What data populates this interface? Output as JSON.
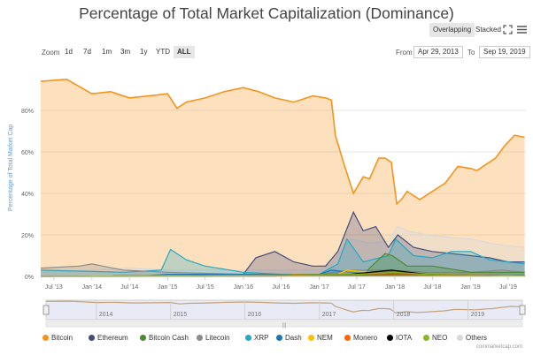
{
  "header": {
    "title": "Percentage of Total Market Capitalization (Dominance)",
    "mode_overlapping": "Overlapping",
    "mode_stacked": "Stacked",
    "fullscreen_icon": "expand-icon",
    "menu_icon": "hamburger-icon"
  },
  "zoom": {
    "label": "Zoom",
    "buttons": [
      "1d",
      "7d",
      "1m",
      "3m",
      "1y",
      "YTD",
      "ALL"
    ],
    "active": "ALL",
    "from_label": "From",
    "from_value": "Apr 29, 2013",
    "to_label": "To",
    "to_value": "Sep 19, 2019"
  },
  "credit": "coinmarketcap.com",
  "navigator": {
    "year_labels": [
      "2014",
      "2015",
      "2016",
      "2017",
      "2018",
      "2019"
    ],
    "handle_icon": "grip-handle-icon"
  },
  "colors": {
    "Bitcoin": "#f7931a",
    "Ethereum": "#434c7e",
    "Bitcoin Cash": "#478c2f",
    "Litecoin": "#8c8c8c",
    "XRP": "#23a9c1",
    "Dash": "#1c75bc",
    "NEM": "#ffc000",
    "Monero": "#ff6600",
    "IOTA": "#000000",
    "NEO": "#8ab624",
    "Others": "#d9d9d9"
  },
  "chart_data": {
    "type": "area",
    "title": "Percentage of Total Market Capitalization (Dominance)",
    "xlabel": "",
    "ylabel": "Percentage of Total Market Cap",
    "ylim": [
      0,
      100
    ],
    "yticks": [
      "0%",
      "20%",
      "40%",
      "60%",
      "80%"
    ],
    "xticks": [
      "Jul '13",
      "Jan '14",
      "Jul '14",
      "Jan '15",
      "Jul '15",
      "Jan '16",
      "Jul '16",
      "Jan '17",
      "Jul '17",
      "Jan '18",
      "Jul '18",
      "Jan '19",
      "Jul '19"
    ],
    "legend_position": "bottom",
    "grid": true,
    "series": [
      {
        "name": "Bitcoin",
        "x": [
          "2013-04-29",
          "2013-09-01",
          "2014-01-01",
          "2014-04-01",
          "2014-07-01",
          "2014-10-01",
          "2015-01-01",
          "2015-02-15",
          "2015-04-01",
          "2015-07-01",
          "2015-10-01",
          "2016-01-01",
          "2016-03-15",
          "2016-06-01",
          "2016-09-01",
          "2016-12-01",
          "2017-02-01",
          "2017-03-01",
          "2017-03-20",
          "2017-05-01",
          "2017-06-15",
          "2017-08-01",
          "2017-09-01",
          "2017-10-15",
          "2017-11-15",
          "2017-12-15",
          "2018-01-10",
          "2018-02-01",
          "2018-03-01",
          "2018-05-01",
          "2018-07-01",
          "2018-09-01",
          "2018-11-01",
          "2019-01-01",
          "2019-02-01",
          "2019-04-01",
          "2019-05-01",
          "2019-06-15",
          "2019-08-01",
          "2019-09-19"
        ],
        "values": [
          94,
          95,
          88,
          89,
          86,
          87,
          88,
          81,
          84,
          86,
          89,
          91,
          89,
          86,
          84,
          87,
          86,
          85,
          68,
          54,
          40,
          48,
          47,
          57,
          57,
          55,
          35,
          37,
          41,
          37,
          41,
          45,
          53,
          52,
          51,
          55,
          57,
          63,
          68,
          67
        ]
      },
      {
        "name": "Ethereum",
        "x": [
          "2013-04-29",
          "2015-08-01",
          "2016-01-01",
          "2016-03-01",
          "2016-06-01",
          "2016-09-01",
          "2016-12-01",
          "2017-02-01",
          "2017-04-01",
          "2017-06-15",
          "2017-08-01",
          "2017-10-01",
          "2017-12-01",
          "2018-01-15",
          "2018-04-01",
          "2018-07-01",
          "2018-10-01",
          "2019-01-01",
          "2019-04-01",
          "2019-07-01",
          "2019-09-19"
        ],
        "values": [
          0,
          0,
          1,
          9,
          12,
          7,
          5,
          5,
          12,
          31,
          22,
          24,
          14,
          20,
          14,
          12,
          11,
          10,
          9,
          7,
          7
        ]
      },
      {
        "name": "XRP",
        "x": [
          "2013-04-29",
          "2014-06-01",
          "2014-12-01",
          "2015-01-15",
          "2015-04-01",
          "2015-07-01",
          "2016-01-01",
          "2016-07-01",
          "2017-01-01",
          "2017-04-01",
          "2017-05-15",
          "2017-08-01",
          "2017-12-01",
          "2018-01-05",
          "2018-04-01",
          "2018-07-01",
          "2018-10-01",
          "2019-01-01",
          "2019-04-01",
          "2019-09-19"
        ],
        "values": [
          3,
          2,
          3,
          13,
          8,
          5,
          2,
          1,
          1,
          6,
          18,
          7,
          10,
          18,
          10,
          9,
          12,
          12,
          8,
          6
        ]
      },
      {
        "name": "Litecoin",
        "x": [
          "2013-04-29",
          "2013-11-01",
          "2014-01-01",
          "2014-06-01",
          "2015-01-01",
          "2016-01-01",
          "2017-01-01",
          "2017-06-01",
          "2017-12-01",
          "2018-06-01",
          "2019-01-01",
          "2019-06-01",
          "2019-09-19"
        ],
        "values": [
          4,
          5,
          6,
          3,
          2,
          1,
          1,
          3,
          3,
          2,
          2,
          3,
          2
        ]
      },
      {
        "name": "Bitcoin Cash",
        "x": [
          "2017-08-01",
          "2017-09-01",
          "2017-11-15",
          "2017-12-20",
          "2018-03-01",
          "2018-07-01",
          "2018-11-01",
          "2019-01-01",
          "2019-09-19"
        ],
        "values": [
          0,
          4,
          11,
          10,
          5,
          5,
          3,
          2,
          2
        ]
      },
      {
        "name": "Dash",
        "x": [
          "2013-04-29",
          "2014-08-01",
          "2015-01-01",
          "2016-01-01",
          "2016-06-01",
          "2017-01-01",
          "2017-03-01",
          "2017-06-01",
          "2018-01-01",
          "2018-06-01",
          "2019-09-19"
        ],
        "values": [
          0,
          0,
          1,
          1,
          1,
          1,
          3,
          2,
          1,
          1,
          0.5
        ]
      },
      {
        "name": "NEM",
        "x": [
          "2013-04-29",
          "2016-06-01",
          "2017-04-01",
          "2017-05-15",
          "2017-12-01",
          "2018-06-01",
          "2019-09-19"
        ],
        "values": [
          0,
          0,
          1,
          3,
          1,
          0.5,
          0.2
        ]
      },
      {
        "name": "Monero",
        "x": [
          "2013-04-29",
          "2016-06-01",
          "2016-09-01",
          "2017-01-01",
          "2017-12-01",
          "2018-06-01",
          "2019-09-19"
        ],
        "values": [
          0,
          0,
          1,
          0.8,
          1,
          1,
          0.5
        ]
      },
      {
        "name": "IOTA",
        "x": [
          "2013-04-29",
          "2017-06-01",
          "2017-12-15",
          "2018-06-01",
          "2019-09-19"
        ],
        "values": [
          0,
          1,
          3,
          1,
          0.2
        ]
      },
      {
        "name": "NEO",
        "x": [
          "2013-04-29",
          "2017-07-01",
          "2018-01-01",
          "2018-06-01",
          "2019-09-19"
        ],
        "values": [
          0,
          1,
          2,
          1,
          0.3
        ]
      },
      {
        "name": "Others",
        "x": [
          "2013-04-29",
          "2014-01-01",
          "2014-07-01",
          "2015-01-01",
          "2016-01-01",
          "2017-01-01",
          "2017-03-01",
          "2017-06-01",
          "2017-09-01",
          "2017-12-01",
          "2018-01-15",
          "2018-03-01",
          "2018-06-01",
          "2018-09-01",
          "2019-01-01",
          "2019-06-01",
          "2019-09-19"
        ],
        "values": [
          2,
          3,
          4,
          3,
          3,
          3,
          6,
          18,
          16,
          17,
          24,
          22,
          20,
          19,
          18,
          15,
          14
        ]
      }
    ]
  }
}
